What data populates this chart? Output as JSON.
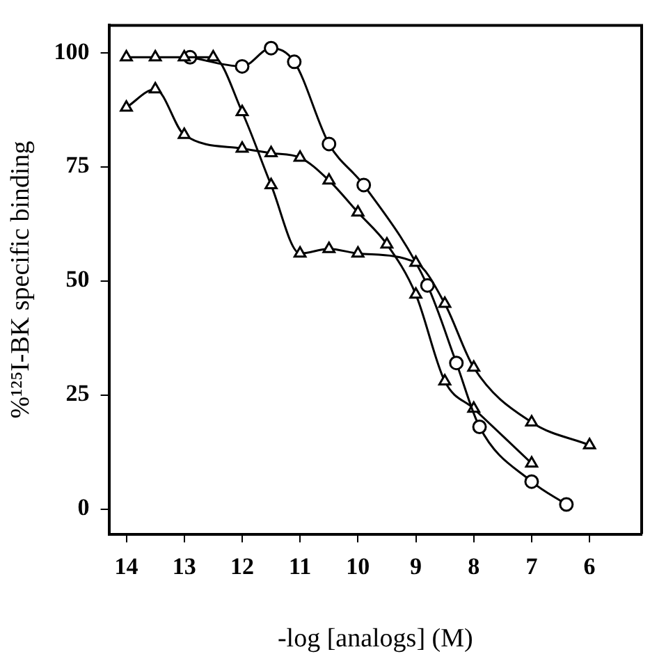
{
  "chart_data": {
    "type": "line",
    "xlabel": "-log [analogs] (M)",
    "ylabel": "%¹²⁵I-BK specific binding",
    "xlim": [
      14.3,
      5.1
    ],
    "ylim": [
      -5.5,
      106
    ],
    "xticks": [
      14,
      13,
      12,
      11,
      10,
      9,
      8,
      7,
      6
    ],
    "yticks": [
      0,
      25,
      50,
      75,
      100
    ],
    "grid": false,
    "legend": false,
    "series": [
      {
        "color": "#000000",
        "marker": "triangle",
        "x": [
          14,
          13.5,
          13,
          12.5,
          12,
          11.5,
          11,
          10.5,
          10,
          9,
          8.5,
          8,
          7,
          6
        ],
        "values": [
          99,
          99,
          99,
          99,
          87,
          71,
          56,
          57,
          56,
          54,
          45,
          31,
          19,
          14
        ]
      },
      {
        "color": "#000000",
        "marker": "circle",
        "x": [
          12.9,
          12,
          11.5,
          11.1,
          10.5,
          9.9,
          8.8,
          8.3,
          7.9,
          7,
          6.4
        ],
        "values": [
          99,
          97,
          101,
          98,
          80,
          71,
          49,
          32,
          18,
          6,
          1
        ]
      },
      {
        "color": "#000000",
        "marker": "triangle",
        "x": [
          14,
          13.5,
          13,
          12,
          11.5,
          11,
          10.5,
          10,
          9.5,
          9,
          8.5,
          8,
          7
        ],
        "values": [
          88,
          92,
          82,
          79,
          78,
          77,
          72,
          65,
          58,
          47,
          28,
          22,
          10
        ]
      }
    ]
  }
}
